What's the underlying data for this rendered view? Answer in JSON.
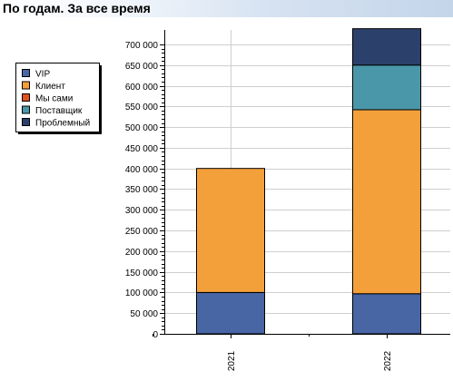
{
  "header": {
    "title": "По годам. За все время"
  },
  "chart_data": {
    "type": "bar",
    "stacked": true,
    "categories": [
      "2021",
      "2022"
    ],
    "series": [
      {
        "name": "VIP",
        "color": "#4865a4",
        "values": [
          100000,
          97000
        ]
      },
      {
        "name": "Клиент",
        "color": "#f4a03a",
        "values": [
          300000,
          445000
        ]
      },
      {
        "name": "Мы сами",
        "color": "#e3521e",
        "values": [
          0,
          0
        ]
      },
      {
        "name": "Поставщик",
        "color": "#4b97aa",
        "values": [
          0,
          108000
        ]
      },
      {
        "name": "Проблемный",
        "color": "#2b406b",
        "values": [
          0,
          88000
        ]
      }
    ],
    "y_ticks": [
      "0",
      "50 000",
      "100 000",
      "150 000",
      "200 000",
      "250 000",
      "300 000",
      "350 000",
      "400 000",
      "450 000",
      "500 000",
      "550 000",
      "600 000",
      "650 000",
      "700 000"
    ],
    "ylim": [
      0,
      735000
    ],
    "y_step": 50000,
    "grid": true,
    "legend_position": "left"
  }
}
